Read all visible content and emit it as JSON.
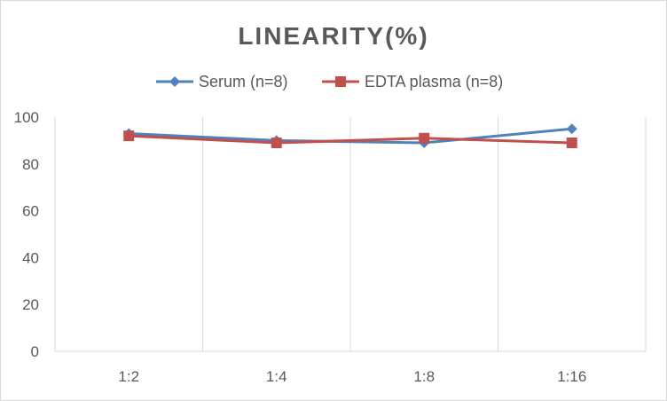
{
  "chart_data": {
    "type": "line",
    "title": "LINEARITY(%)",
    "categories": [
      "1:2",
      "1:4",
      "1:8",
      "1:16"
    ],
    "ylim": [
      0,
      100
    ],
    "yticks": [
      0,
      20,
      40,
      60,
      80,
      100
    ],
    "grid": "vertical",
    "legend_position": "top",
    "series": [
      {
        "name": "Serum (n=8)",
        "values": [
          93,
          90,
          89,
          95
        ],
        "color": "#4F81BD",
        "marker": "diamond"
      },
      {
        "name": "EDTA plasma (n=8)",
        "values": [
          92,
          89,
          91,
          89
        ],
        "color": "#C0504D",
        "marker": "square"
      }
    ]
  }
}
